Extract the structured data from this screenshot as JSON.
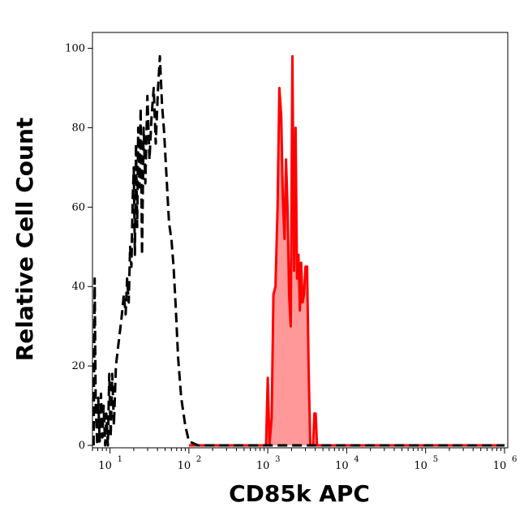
{
  "chart_data": {
    "type": "line",
    "title": "",
    "xlabel": "CD85k APC",
    "ylabel": "Relative Cell Count",
    "x_scale": "log",
    "xlim": [
      6,
      1100000
    ],
    "ylim": [
      0,
      104
    ],
    "x_ticks": [
      {
        "value": 10,
        "base": "10",
        "exp": "1"
      },
      {
        "value": 100,
        "base": "10",
        "exp": "2"
      },
      {
        "value": 1000,
        "base": "10",
        "exp": "3"
      },
      {
        "value": 10000,
        "base": "10",
        "exp": "4"
      },
      {
        "value": 100000,
        "base": "10",
        "exp": "5"
      },
      {
        "value": 1000000,
        "base": "10",
        "exp": "6"
      }
    ],
    "y_ticks": [
      0,
      20,
      40,
      60,
      80,
      100
    ],
    "grid": false,
    "legend": "none",
    "series": [
      {
        "style": "dashed",
        "color": "#000000",
        "fill": "none",
        "points": [
          [
            6.2,
            0
          ],
          [
            6.4,
            42
          ],
          [
            6.6,
            10
          ],
          [
            6.9,
            0
          ],
          [
            7.1,
            12
          ],
          [
            7.4,
            1
          ],
          [
            7.7,
            13
          ],
          [
            8.0,
            2
          ],
          [
            8.3,
            10
          ],
          [
            8.7,
            0
          ],
          [
            9.0,
            8
          ],
          [
            9.4,
            0
          ],
          [
            9.8,
            18
          ],
          [
            10.2,
            2
          ],
          [
            10.7,
            18
          ],
          [
            11.2,
            5
          ],
          [
            11.9,
            20
          ],
          [
            12.9,
            26
          ],
          [
            14.0,
            32
          ],
          [
            15.0,
            38
          ],
          [
            15.8,
            33
          ],
          [
            16.5,
            42
          ],
          [
            17.3,
            36
          ],
          [
            18.0,
            50
          ],
          [
            18.7,
            45
          ],
          [
            19.4,
            62
          ],
          [
            20.0,
            70
          ],
          [
            20.7,
            48
          ],
          [
            21.4,
            76
          ],
          [
            22.1,
            55
          ],
          [
            22.8,
            80
          ],
          [
            23.6,
            65
          ],
          [
            24.5,
            85
          ],
          [
            25.5,
            48
          ],
          [
            26.7,
            80
          ],
          [
            28.1,
            66
          ],
          [
            29.8,
            88
          ],
          [
            31.7,
            72
          ],
          [
            33.7,
            83
          ],
          [
            35.8,
            90
          ],
          [
            38.0,
            76
          ],
          [
            40.4,
            89
          ],
          [
            42.9,
            98
          ],
          [
            45.6,
            86
          ],
          [
            48.5,
            79
          ],
          [
            52.0,
            68
          ],
          [
            56.0,
            56
          ],
          [
            60.0,
            52
          ],
          [
            64.0,
            45
          ],
          [
            68.0,
            35
          ],
          [
            73.0,
            22
          ],
          [
            80.0,
            12
          ],
          [
            90.0,
            5
          ],
          [
            100.0,
            1
          ],
          [
            130.0,
            0
          ],
          [
            300.0,
            0
          ],
          [
            1000.0,
            0
          ],
          [
            10000.0,
            0
          ],
          [
            100000.0,
            0
          ],
          [
            1000000.0,
            0
          ]
        ]
      },
      {
        "style": "solid",
        "color": "#ff0000",
        "fill": "#ff9999",
        "points": [
          [
            100,
            0
          ],
          [
            900,
            0
          ],
          [
            950,
            0
          ],
          [
            1000,
            17
          ],
          [
            1050,
            0
          ],
          [
            1120,
            7
          ],
          [
            1180,
            38
          ],
          [
            1250,
            40
          ],
          [
            1330,
            60
          ],
          [
            1400,
            90
          ],
          [
            1480,
            83
          ],
          [
            1550,
            62
          ],
          [
            1630,
            52
          ],
          [
            1700,
            72
          ],
          [
            1780,
            60
          ],
          [
            1860,
            38
          ],
          [
            1950,
            30
          ],
          [
            2050,
            98
          ],
          [
            2150,
            44
          ],
          [
            2250,
            80
          ],
          [
            2350,
            42
          ],
          [
            2450,
            48
          ],
          [
            2550,
            34
          ],
          [
            2650,
            46
          ],
          [
            2760,
            36
          ],
          [
            2880,
            38
          ],
          [
            3000,
            45
          ],
          [
            3150,
            45
          ],
          [
            3300,
            18
          ],
          [
            3450,
            0
          ],
          [
            3600,
            0
          ],
          [
            3750,
            0
          ],
          [
            3900,
            8
          ],
          [
            4050,
            8
          ],
          [
            4200,
            0
          ],
          [
            4500,
            0
          ],
          [
            10000,
            0
          ],
          [
            100000,
            0
          ],
          [
            1000000,
            0
          ]
        ]
      }
    ]
  }
}
